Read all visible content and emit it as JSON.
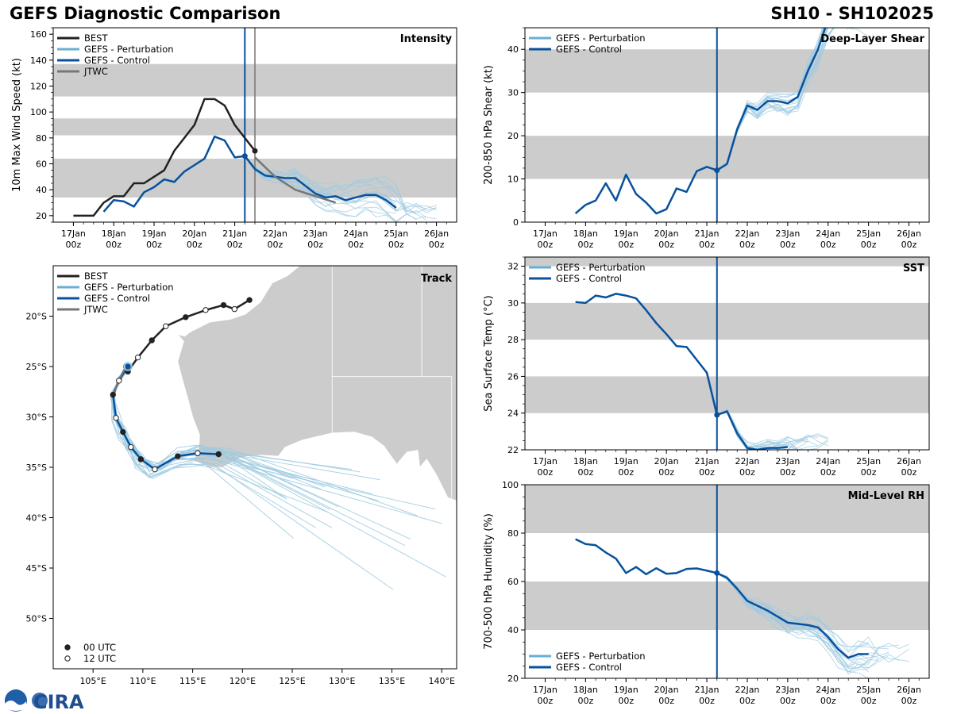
{
  "title_left": "GEFS Diagnostic Comparison",
  "title_right": "SH10 - SH102025",
  "logo_text": "CIRA",
  "colors": {
    "best": "#222222",
    "perturbation": "#6aaed6",
    "perturbation_line": "#9ecae1",
    "control": "#08519c",
    "jtwc": "#777777",
    "band": "#cccccc",
    "land": "#cccccc"
  },
  "time_labels": [
    {
      "t": 0,
      "day": "17Jan",
      "hour": "00z"
    },
    {
      "t": 1,
      "day": "18Jan",
      "hour": "00z"
    },
    {
      "t": 2,
      "day": "19Jan",
      "hour": "00z"
    },
    {
      "t": 3,
      "day": "20Jan",
      "hour": "00z"
    },
    {
      "t": 4,
      "day": "21Jan",
      "hour": "00z"
    },
    {
      "t": 5,
      "day": "22Jan",
      "hour": "00z"
    },
    {
      "t": 6,
      "day": "23Jan",
      "hour": "00z"
    },
    {
      "t": 7,
      "day": "24Jan",
      "hour": "00z"
    },
    {
      "t": 8,
      "day": "25Jan",
      "hour": "00z"
    },
    {
      "t": 9,
      "day": "26Jan",
      "hour": "00z"
    }
  ],
  "legend_labels": {
    "best": "BEST",
    "perturbation": "GEFS - Perturbation",
    "control": "GEFS - Control",
    "jtwc": "JTWC",
    "utc00": "00 UTC",
    "utc12": "12 UTC"
  },
  "chart_data": [
    {
      "id": "intensity",
      "type": "line",
      "title": "Intensity",
      "ylabel": "10m Max Wind Speed (kt)",
      "xlim": [
        -0.5,
        9.5
      ],
      "ylim": [
        15,
        165
      ],
      "yticks": [
        20,
        40,
        60,
        80,
        100,
        120,
        140,
        160
      ],
      "bands": [
        [
          34,
          64
        ],
        [
          82,
          95
        ],
        [
          112,
          137
        ]
      ],
      "init_time": 4.25,
      "jtwc_time": 4.5,
      "series": [
        {
          "name": "BEST",
          "x": [
            0,
            0.25,
            0.5,
            0.75,
            1,
            1.25,
            1.5,
            1.75,
            2,
            2.25,
            2.5,
            2.75,
            3,
            3.25,
            3.5,
            3.75,
            4,
            4.25,
            4.5
          ],
          "y": [
            20,
            20,
            20,
            30,
            35,
            35,
            45,
            45,
            50,
            55,
            70,
            80,
            90,
            110,
            110,
            105,
            90,
            80,
            70
          ]
        },
        {
          "name": "GEFS - Control",
          "x": [
            0.75,
            1,
            1.25,
            1.5,
            1.75,
            2,
            2.25,
            2.5,
            2.75,
            3,
            3.25,
            3.5,
            3.75,
            4,
            4.25,
            4.5,
            4.75,
            5,
            5.25,
            5.5,
            5.75,
            6,
            6.25,
            6.5,
            6.75,
            7,
            7.25,
            7.5,
            7.75,
            8
          ],
          "y": [
            23,
            32,
            31,
            27,
            38,
            42,
            48,
            46,
            54,
            59,
            64,
            81,
            78,
            65,
            66,
            56,
            51,
            50,
            49,
            49,
            43,
            37,
            34,
            35,
            32,
            34,
            36,
            36,
            32,
            26
          ]
        },
        {
          "name": "JTWC",
          "x": [
            4.5,
            5,
            5.5,
            6,
            6.5
          ],
          "y": [
            65,
            50,
            40,
            35,
            30
          ]
        }
      ]
    },
    {
      "id": "shear",
      "type": "line",
      "title": "Deep-Layer Shear",
      "ylabel": "200-850 hPa Shear (kt)",
      "xlim": [
        -0.5,
        9.5
      ],
      "ylim": [
        0,
        45
      ],
      "yticks": [
        0,
        10,
        20,
        30,
        40
      ],
      "bands": [
        [
          10,
          20
        ],
        [
          30,
          40
        ]
      ],
      "init_time": 4.25,
      "series": [
        {
          "name": "GEFS - Control",
          "x": [
            0.75,
            1,
            1.25,
            1.5,
            1.75,
            2,
            2.25,
            2.5,
            2.75,
            3,
            3.25,
            3.5,
            3.75,
            4,
            4.25,
            4.5,
            4.75,
            5,
            5.25,
            5.5,
            5.75,
            6,
            6.25,
            6.5,
            6.75,
            7
          ],
          "y": [
            2,
            4,
            5,
            9,
            5,
            11,
            6.5,
            4.5,
            2,
            3,
            7.8,
            7,
            11.8,
            12.8,
            12,
            13.5,
            21.5,
            27,
            26,
            28,
            28,
            27.5,
            29,
            35,
            40,
            47
          ]
        }
      ]
    },
    {
      "id": "sst",
      "type": "line",
      "title": "SST",
      "ylabel": "Sea Surface Temp (°C)",
      "xlim": [
        -0.5,
        9.5
      ],
      "ylim": [
        22,
        32.5
      ],
      "yticks": [
        22,
        24,
        26,
        28,
        30,
        32
      ],
      "bands": [
        [
          24,
          26
        ],
        [
          28,
          30
        ],
        [
          32,
          32.5
        ]
      ],
      "init_time": 4.25,
      "series": [
        {
          "name": "GEFS - Control",
          "x": [
            0.75,
            1,
            1.25,
            1.5,
            1.75,
            2,
            2.25,
            2.5,
            2.75,
            3,
            3.25,
            3.5,
            3.75,
            4,
            4.25,
            4.5,
            4.75,
            5,
            5.25,
            5.5,
            5.75,
            6
          ],
          "y": [
            30.05,
            30,
            30.4,
            30.3,
            30.5,
            30.4,
            30.25,
            29.6,
            28.9,
            28.3,
            27.65,
            27.6,
            26.9,
            26.2,
            23.9,
            24.1,
            22.9,
            22.1,
            22,
            22.1,
            22.1,
            22.15
          ]
        }
      ]
    },
    {
      "id": "rh",
      "type": "line",
      "title": "Mid-Level RH",
      "ylabel": "700-500 hPa Humidity (%)",
      "xlim": [
        -0.5,
        9.5
      ],
      "ylim": [
        20,
        100
      ],
      "yticks": [
        20,
        40,
        60,
        80,
        100
      ],
      "bands": [
        [
          40,
          60
        ],
        [
          80,
          100
        ]
      ],
      "init_time": 4.25,
      "series": [
        {
          "name": "GEFS - Control",
          "x": [
            0.75,
            1,
            1.25,
            1.5,
            1.75,
            2,
            2.25,
            2.5,
            2.75,
            3,
            3.25,
            3.5,
            3.75,
            4,
            4.25,
            4.5,
            4.75,
            5,
            5.25,
            5.5,
            5.75,
            6,
            6.25,
            6.5,
            6.75,
            7,
            7.25,
            7.5,
            7.75,
            8
          ],
          "y": [
            77.5,
            75.5,
            75,
            72,
            69.5,
            63.5,
            66,
            63,
            65.5,
            63.2,
            63.5,
            65.2,
            65.4,
            64.5,
            63.5,
            61.5,
            57,
            52,
            50,
            48,
            45.5,
            43,
            42.5,
            42,
            41,
            37,
            32,
            28.5,
            30,
            30
          ]
        }
      ]
    },
    {
      "id": "track",
      "type": "line",
      "title": "Track",
      "xlim": [
        101,
        141.5
      ],
      "ylim": [
        -55,
        -15
      ],
      "xticks": [
        105,
        110,
        115,
        120,
        125,
        130,
        135,
        140
      ],
      "xtick_labels": [
        "105°E",
        "110°E",
        "115°E",
        "120°E",
        "125°E",
        "130°E",
        "135°E",
        "140°E"
      ],
      "yticks": [
        -20,
        -25,
        -30,
        -35,
        -40,
        -45,
        -50
      ],
      "ytick_labels": [
        "20°S",
        "25°S",
        "30°S",
        "35°S",
        "40°S",
        "45°S",
        "50°S"
      ],
      "series": [
        {
          "name": "BEST",
          "lon": [
            120.7,
            119.2,
            118.1,
            116.3,
            114.3,
            112.3,
            110.9,
            109.5,
            108.5,
            108.3
          ],
          "lat": [
            -18.4,
            -19.3,
            -18.9,
            -19.4,
            -20.1,
            -21.0,
            -22.4,
            -24.1,
            -25.5,
            -25.0
          ]
        },
        {
          "name": "GEFS - Control",
          "lon": [
            108.5,
            107.6,
            107.0,
            107.3,
            108.0,
            108.8,
            109.8,
            111.2,
            113.5,
            115.5,
            117.6
          ],
          "lat": [
            -25.0,
            -26.4,
            -27.8,
            -30.1,
            -31.5,
            -33.0,
            -34.2,
            -35.2,
            -33.9,
            -33.6,
            -33.7
          ]
        },
        {
          "name": "JTWC",
          "lon": [
            108.3,
            107.5,
            107.1
          ],
          "lat": [
            -25.0,
            -26.5,
            -27.8
          ]
        }
      ]
    }
  ]
}
